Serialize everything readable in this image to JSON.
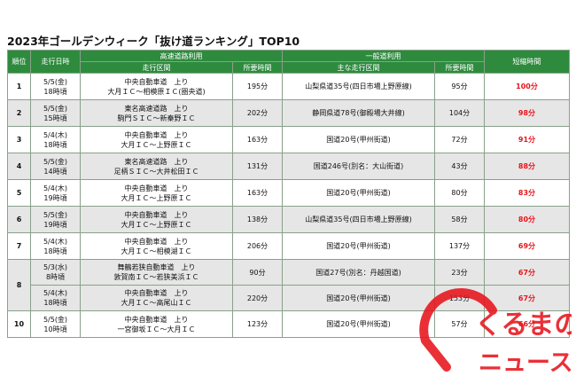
{
  "title": "2023年ゴールデンウィーク「抜け道ランキング」TOP10",
  "header": {
    "rank": "順位",
    "datetime": "走行日時",
    "highway": "高速道路利用",
    "general": "一般道利用",
    "shortened": "短縮時間",
    "section": "走行区間",
    "time_required": "所要時間",
    "main_section": "主な走行区間"
  },
  "rows": [
    {
      "rank": "1",
      "date": "5/5(金)",
      "time": "18時頃",
      "hw1": "中央自動車道　上り",
      "hw2": "大月ＩＣ～相模原ＩＣ(圏央道)",
      "hw_time": "195分",
      "gen": "山梨県道35号(四日市場上野原線)",
      "gen_time": "95分",
      "short": "100分"
    },
    {
      "rank": "2",
      "date": "5/5(金)",
      "time": "15時頃",
      "hw1": "東名高速道路　上り",
      "hw2": "駒門ＳＩＣ～新秦野ＩＣ",
      "hw_time": "202分",
      "gen": "静岡県道78号(御殿場大井線)",
      "gen_time": "104分",
      "short": "98分"
    },
    {
      "rank": "3",
      "date": "5/4(木)",
      "time": "18時頃",
      "hw1": "中央自動車道　上り",
      "hw2": "大月ＩＣ～上野原ＩＣ",
      "hw_time": "163分",
      "gen": "国道20号(甲州街道)",
      "gen_time": "72分",
      "short": "91分"
    },
    {
      "rank": "4",
      "date": "5/5(金)",
      "time": "14時頃",
      "hw1": "東名高速道路　上り",
      "hw2": "足柄ＳＩＣ～大井松田ＩＣ",
      "hw_time": "131分",
      "gen": "国道246号(別名：大山街道)",
      "gen_time": "43分",
      "short": "88分"
    },
    {
      "rank": "5",
      "date": "5/4(木)",
      "time": "19時頃",
      "hw1": "中央自動車道　上り",
      "hw2": "大月ＩＣ～上野原ＩＣ",
      "hw_time": "163分",
      "gen": "国道20号(甲州街道)",
      "gen_time": "80分",
      "short": "83分"
    },
    {
      "rank": "6",
      "date": "5/5(金)",
      "time": "19時頃",
      "hw1": "中央自動車道　上り",
      "hw2": "大月ＩＣ～上野原ＩＣ",
      "hw_time": "138分",
      "gen": "山梨県道35号(四日市場上野原線)",
      "gen_time": "58分",
      "short": "80分"
    },
    {
      "rank": "7",
      "date": "5/4(木)",
      "time": "18時頃",
      "hw1": "中央自動車道　上り",
      "hw2": "大月ＩＣ～相模湖ＩＣ",
      "hw_time": "206分",
      "gen": "国道20号(甲州街道)",
      "gen_time": "137分",
      "short": "69分"
    },
    {
      "rank": "8",
      "date": "5/3(水)",
      "time": "8時頃",
      "hw1": "舞鶴若狭自動車道　上り",
      "hw2": "敦賀南ＩＣ～若狭美浜ＩＣ",
      "hw_time": "90分",
      "gen": "国道27号(別名：丹越国道)",
      "gen_time": "23分",
      "short": "67分"
    },
    {
      "rank": "",
      "date": "5/4(木)",
      "time": "18時頃",
      "hw1": "中央自動車道　上り",
      "hw2": "大月ＩＣ～高尾山ＩＣ",
      "hw_time": "220分",
      "gen": "国道20号(甲州街道)",
      "gen_time": "153分",
      "short": "67分"
    },
    {
      "rank": "10",
      "date": "5/5(金)",
      "time": "10時頃",
      "hw1": "中央自動車道　上り",
      "hw2": "一宮御坂ＩＣ～大月ＩＣ",
      "hw_time": "123分",
      "gen": "国道20号(甲州街道)",
      "gen_time": "57分",
      "short": "66分"
    }
  ],
  "logo": {
    "top": "くるまの",
    "bottom": "ニュース",
    "color": "#e8141c"
  }
}
